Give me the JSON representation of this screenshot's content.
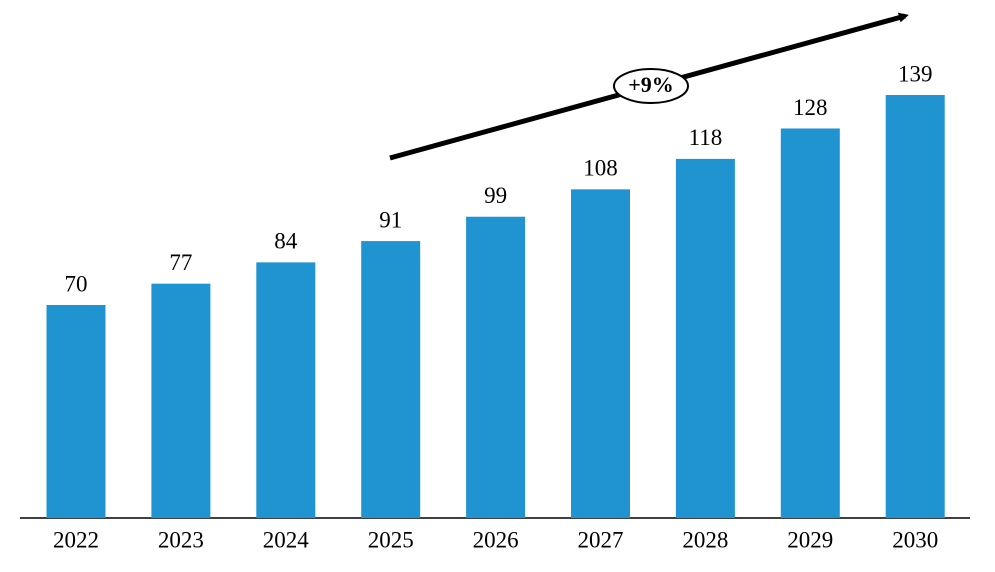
{
  "chart_data": {
    "type": "bar",
    "categories": [
      "2022",
      "2023",
      "2024",
      "2025",
      "2026",
      "2027",
      "2028",
      "2029",
      "2030"
    ],
    "values": [
      70,
      77,
      84,
      91,
      99,
      108,
      118,
      128,
      139
    ],
    "color": "#2094d0",
    "annotation": "+9%"
  }
}
